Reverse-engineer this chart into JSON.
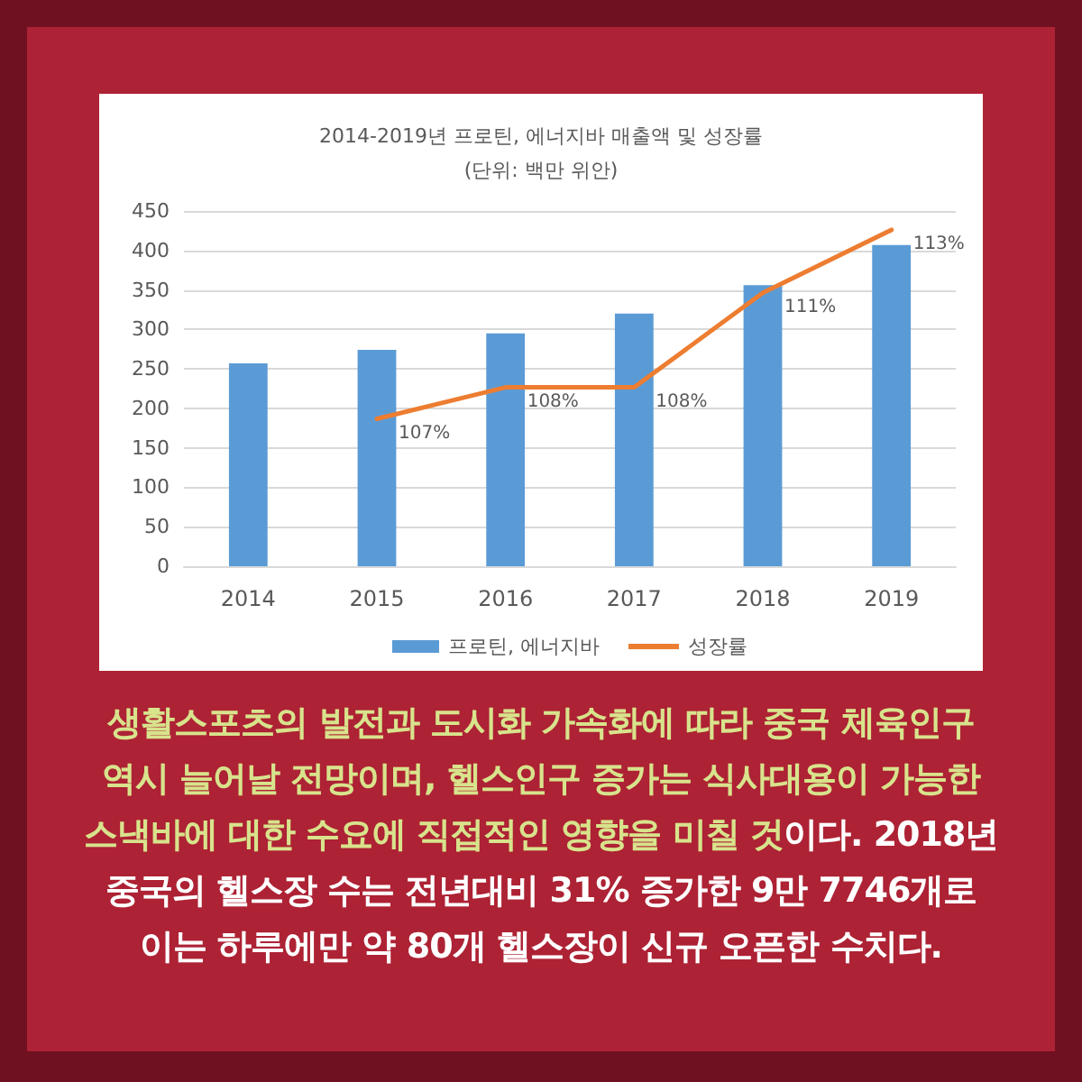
{
  "chart_data": {
    "type": "bar",
    "title": "2014-2019년 프로틴, 에너지바 매출액 및 성장률",
    "subtitle": "(단위: 백만 위안)",
    "categories": [
      "2014",
      "2015",
      "2016",
      "2017",
      "2018",
      "2019"
    ],
    "series": [
      {
        "name": "프로틴, 에너지바",
        "color": "#5b9bd5",
        "values": [
          257,
          274,
          295,
          320,
          356,
          407
        ]
      },
      {
        "name": "성장률",
        "type": "line",
        "axis": "y2",
        "color": "#ed7d31",
        "values": [
          null,
          107,
          108,
          108,
          111,
          113
        ],
        "value_labels": [
          null,
          "107%",
          "108%",
          "108%",
          "111%",
          "113%"
        ]
      }
    ],
    "ylim": [
      0,
      450
    ],
    "yticks": [
      0,
      50,
      100,
      150,
      200,
      250,
      300,
      350,
      400,
      450
    ],
    "grid": "y",
    "legend": "bottom",
    "marker": "none",
    "annotations": [
      "생활스포츠의 발전과 도시화 가속화에 따라 중국 체육인구",
      "역시 늘어날 전망이며, 헬스인구 증가는 식사대용이 가능한",
      "스낵바에 대한 수요에 직접적인 영향을 미칠 것",
      "이다. 2018년",
      "중국의 헬스장 수는 전년대비 31% 증가한 9만 7746개로",
      "이는 하루에만 약 80개 헬스장이 신규 오픈한 수치다."
    ]
  }
}
